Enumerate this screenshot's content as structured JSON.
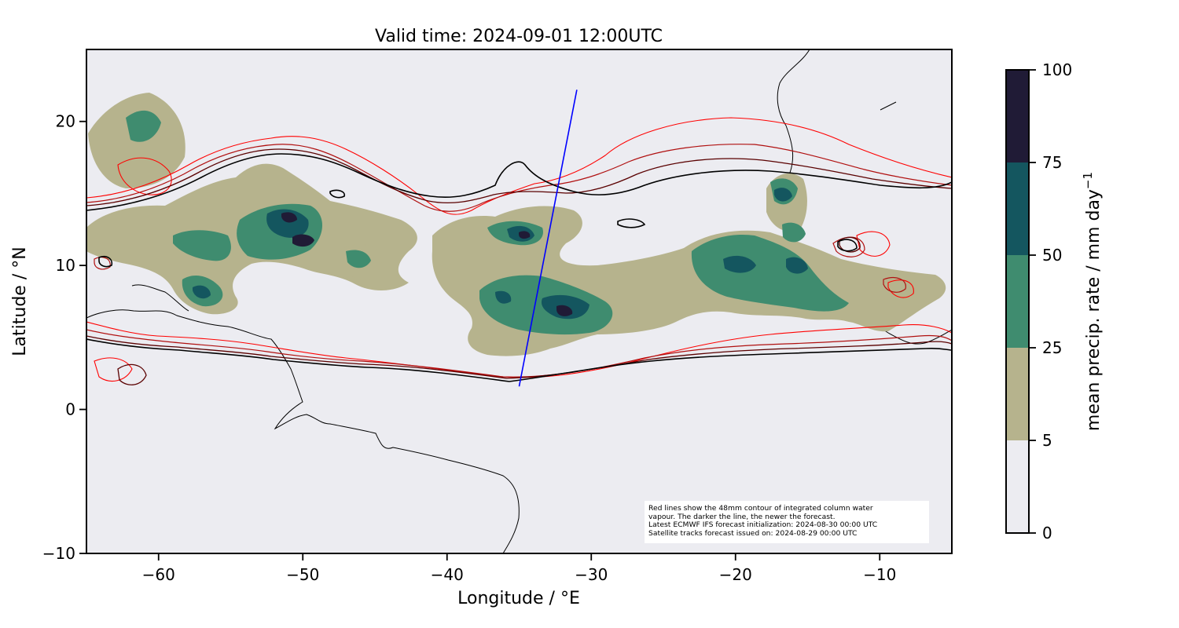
{
  "chart_data": {
    "type": "map",
    "title": "Valid time: 2024-09-01 12:00UTC",
    "xlabel": "Longitude / °E",
    "ylabel": "Latitude / °N",
    "xlim": [
      -65,
      -5
    ],
    "ylim": [
      -10,
      25
    ],
    "xticks": [
      -60,
      -50,
      -40,
      -30,
      -20,
      -10
    ],
    "yticks": [
      -10,
      0,
      10,
      20
    ],
    "xtick_labels": [
      "−60",
      "−50",
      "−40",
      "−30",
      "−20",
      "−10"
    ],
    "ytick_labels": [
      "−10",
      "0",
      "10",
      "20"
    ],
    "background_color": "#ececf1",
    "colorbar": {
      "label": "mean precip. rate / mm day",
      "label_superscript": "−1",
      "bounds": [
        0,
        5,
        25,
        50,
        75,
        100
      ],
      "tick_labels": [
        "0",
        "5",
        "25",
        "50",
        "75",
        "100"
      ],
      "colors": [
        "#ececf1",
        "#b6b38d",
        "#3f8c6f",
        "#14565f",
        "#201b36"
      ]
    },
    "contour_colors": [
      "#ff0000",
      "#b01010",
      "#5a0000",
      "#000000"
    ],
    "satellite_track": {
      "color": "#0000ff",
      "start": {
        "lon": -35.0,
        "lat": 1.6
      },
      "end": {
        "lon": -31.0,
        "lat": 22.2
      }
    },
    "note_lines": [
      "Red lines show the 48mm contour of integrated column water",
      "vapour. The darker the line, the newer the forecast.",
      "Latest ECMWF IFS forecast initialization: 2024-08-30 00:00 UTC",
      "Satellite tracks forecast issued on: 2024-08-29 00:00 UTC"
    ]
  }
}
